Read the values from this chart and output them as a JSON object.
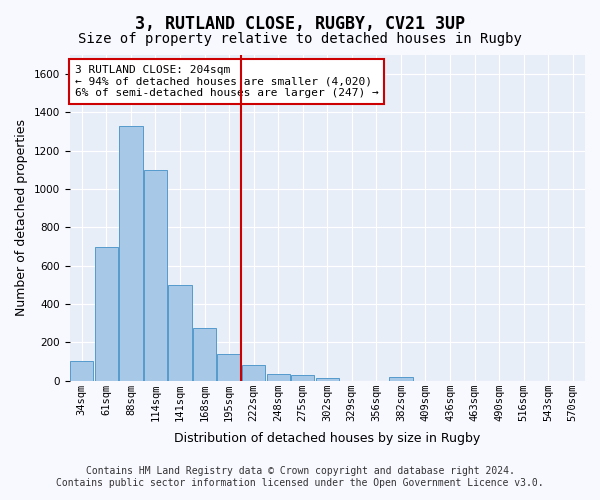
{
  "title": "3, RUTLAND CLOSE, RUGBY, CV21 3UP",
  "subtitle": "Size of property relative to detached houses in Rugby",
  "xlabel": "Distribution of detached houses by size in Rugby",
  "ylabel": "Number of detached properties",
  "categories": [
    "34sqm",
    "61sqm",
    "88sqm",
    "114sqm",
    "141sqm",
    "168sqm",
    "195sqm",
    "222sqm",
    "248sqm",
    "275sqm",
    "302sqm",
    "329sqm",
    "356sqm",
    "382sqm",
    "409sqm",
    "436sqm",
    "463sqm",
    "490sqm",
    "516sqm",
    "543sqm",
    "570sqm"
  ],
  "values": [
    100,
    700,
    1330,
    1100,
    500,
    275,
    140,
    80,
    35,
    30,
    15,
    0,
    0,
    20,
    0,
    0,
    0,
    0,
    0,
    0,
    0
  ],
  "bar_color": "#a8c8e8",
  "bar_edge_color": "#5599cc",
  "background_color": "#e8eef8",
  "grid_color": "#ffffff",
  "vline_x": 6.5,
  "vline_color": "#cc0000",
  "annotation_box_text": "3 RUTLAND CLOSE: 204sqm\n← 94% of detached houses are smaller (4,020)\n6% of semi-detached houses are larger (247) →",
  "annotation_box_color": "#cc0000",
  "footer_line1": "Contains HM Land Registry data © Crown copyright and database right 2024.",
  "footer_line2": "Contains public sector information licensed under the Open Government Licence v3.0.",
  "ylim": [
    0,
    1700
  ],
  "yticks": [
    0,
    200,
    400,
    600,
    800,
    1000,
    1200,
    1400,
    1600
  ],
  "title_fontsize": 12,
  "subtitle_fontsize": 10,
  "axis_label_fontsize": 9,
  "tick_fontsize": 7.5,
  "annotation_fontsize": 8,
  "footer_fontsize": 7
}
